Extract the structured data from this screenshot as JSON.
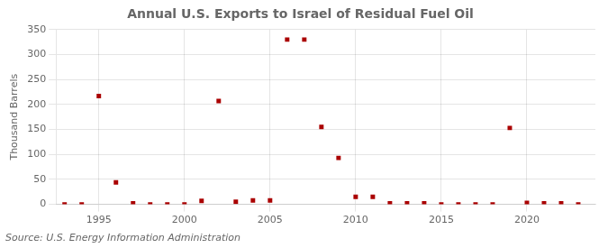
{
  "chart_data": {
    "type": "scatter",
    "title": "Annual U.S. Exports to Israel of Residual Fuel Oil",
    "ylabel": "Thousand Barrels",
    "source": "Source: U.S. Energy Information Administration",
    "x": [
      1993,
      1994,
      1995,
      1996,
      1997,
      1998,
      1999,
      2000,
      2001,
      2002,
      2003,
      2004,
      2005,
      2006,
      2007,
      2008,
      2009,
      2010,
      2011,
      2012,
      2013,
      2014,
      2015,
      2016,
      2017,
      2018,
      2019,
      2020,
      2021,
      2022,
      2023
    ],
    "values": [
      0,
      0,
      217,
      44,
      2,
      0,
      0,
      0,
      7,
      207,
      5,
      8,
      8,
      330,
      330,
      155,
      93,
      15,
      15,
      2,
      2,
      2,
      0,
      0,
      0,
      0,
      153,
      3,
      2,
      2,
      0
    ],
    "color": "#aa0000",
    "marker": "square",
    "xlim": [
      1992.5,
      2024
    ],
    "xticks": [
      1995,
      2000,
      2005,
      2010,
      2015,
      2020
    ],
    "ylim": [
      0,
      350
    ],
    "yticks": [
      0,
      50,
      100,
      150,
      200,
      250,
      300,
      350
    ],
    "grid": true
  }
}
